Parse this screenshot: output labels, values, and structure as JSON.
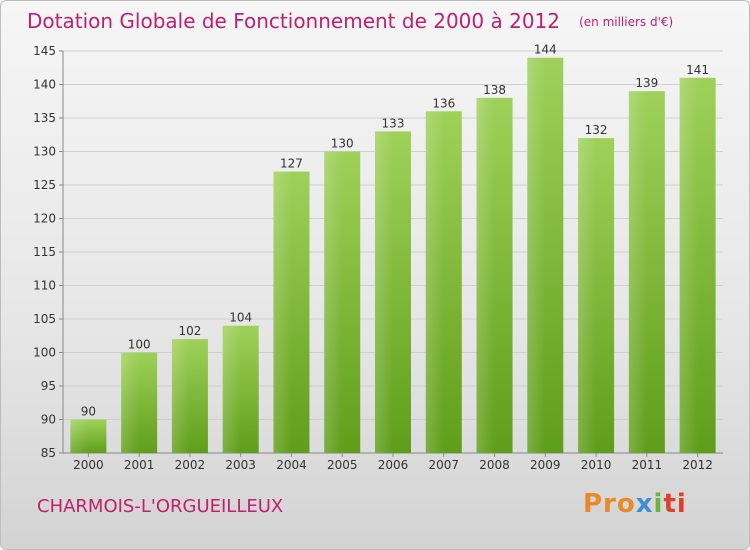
{
  "header": {
    "title": "Dotation Globale de Fonctionnement de 2000 à 2012",
    "unit": "(en milliers d'€)"
  },
  "footer": {
    "commune": "CHARMOIS-L'ORGUEILLEUX",
    "logo": [
      "Pro",
      "x",
      "i",
      "ti"
    ]
  },
  "colors": {
    "title": "#c0206e",
    "bar_light": "#9fd15a",
    "bar_dark": "#5f9e1a",
    "grid": "#cfcfcf"
  },
  "chart_data": {
    "type": "bar",
    "categories": [
      "2000",
      "2001",
      "2002",
      "2003",
      "2004",
      "2005",
      "2006",
      "2007",
      "2008",
      "2009",
      "2010",
      "2011",
      "2012"
    ],
    "values": [
      90,
      100,
      102,
      104,
      127,
      130,
      133,
      136,
      138,
      144,
      132,
      139,
      141
    ],
    "ylim": [
      85,
      145
    ],
    "yticks": [
      85,
      90,
      95,
      100,
      105,
      110,
      115,
      120,
      125,
      130,
      135,
      140,
      145
    ],
    "grid": true,
    "data_labels": true
  }
}
